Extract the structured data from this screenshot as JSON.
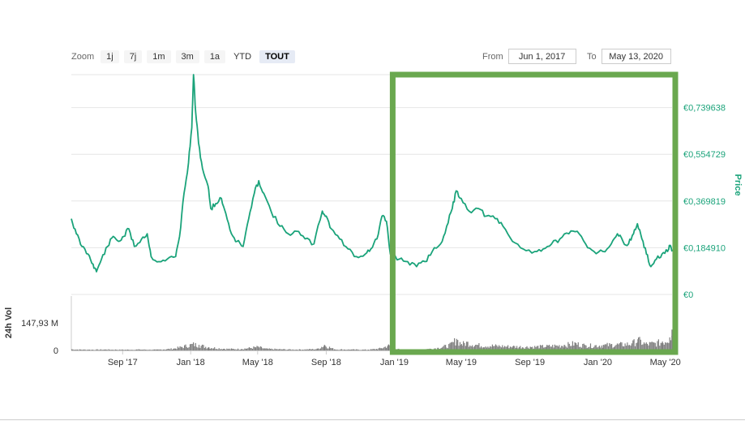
{
  "zoom": {
    "label": "Zoom",
    "buttons": [
      {
        "label": "1j",
        "active": false,
        "plain": false
      },
      {
        "label": "7j",
        "active": false,
        "plain": false
      },
      {
        "label": "1m",
        "active": false,
        "plain": false
      },
      {
        "label": "3m",
        "active": false,
        "plain": false
      },
      {
        "label": "1a",
        "active": false,
        "plain": false
      },
      {
        "label": "YTD",
        "active": false,
        "plain": true
      },
      {
        "label": "TOUT",
        "active": true,
        "plain": false
      }
    ]
  },
  "range": {
    "from_label": "From",
    "from_value": "Jun 1, 2017",
    "to_label": "To",
    "to_value": "May 13, 2020"
  },
  "chart_data": {
    "type": "line",
    "title": "",
    "ylabel": "Price",
    "vol_label": "24h Vol",
    "y_ticks": [
      0,
      0.18491,
      0.369819,
      0.554729,
      0.739638
    ],
    "y_tick_labels": [
      "€0",
      "€0,184910",
      "€0,369819",
      "€0,554729",
      "€0,739638"
    ],
    "ylim": [
      0,
      0.87
    ],
    "vol_ticks": [
      "0",
      "147,93 M"
    ],
    "vol_ylim": [
      0,
      147.93
    ],
    "x_tick_labels": [
      "Sep '17",
      "Jan '18",
      "May '18",
      "Sep '18",
      "Jan '19",
      "May '19",
      "Sep '19",
      "Jan '20",
      "May '20"
    ],
    "x_tick_dates": [
      "2017-09-01",
      "2018-01-01",
      "2018-05-01",
      "2018-09-01",
      "2019-01-01",
      "2019-05-01",
      "2019-09-01",
      "2020-01-01",
      "2020-05-01"
    ],
    "xlim": [
      "2017-06-01",
      "2020-05-13"
    ],
    "grid": true,
    "line_color": "#1aa37a",
    "volume_color": "#7f7f7f",
    "highlight": {
      "from": "2019-01-01",
      "to": "2020-05-13",
      "color": "#6aa84f"
    },
    "series": [
      {
        "values": [
          [
            "2017-06-01",
            0.3
          ],
          [
            "2017-06-10",
            0.24
          ],
          [
            "2017-06-20",
            0.19
          ],
          [
            "2017-07-01",
            0.16
          ],
          [
            "2017-07-10",
            0.12
          ],
          [
            "2017-07-16",
            0.09
          ],
          [
            "2017-07-25",
            0.14
          ],
          [
            "2017-08-05",
            0.19
          ],
          [
            "2017-08-15",
            0.23
          ],
          [
            "2017-08-25",
            0.21
          ],
          [
            "2017-09-03",
            0.23
          ],
          [
            "2017-09-12",
            0.26
          ],
          [
            "2017-09-22",
            0.19
          ],
          [
            "2017-10-05",
            0.22
          ],
          [
            "2017-10-15",
            0.24
          ],
          [
            "2017-10-22",
            0.15
          ],
          [
            "2017-11-05",
            0.13
          ],
          [
            "2017-11-20",
            0.14
          ],
          [
            "2017-12-05",
            0.15
          ],
          [
            "2017-12-12",
            0.23
          ],
          [
            "2017-12-20",
            0.4
          ],
          [
            "2017-12-28",
            0.52
          ],
          [
            "2018-01-03",
            0.66
          ],
          [
            "2018-01-06",
            0.87
          ],
          [
            "2018-01-10",
            0.72
          ],
          [
            "2018-01-15",
            0.6
          ],
          [
            "2018-01-22",
            0.5
          ],
          [
            "2018-02-01",
            0.43
          ],
          [
            "2018-02-06",
            0.34
          ],
          [
            "2018-02-15",
            0.36
          ],
          [
            "2018-02-25",
            0.38
          ],
          [
            "2018-03-05",
            0.32
          ],
          [
            "2018-03-15",
            0.24
          ],
          [
            "2018-03-25",
            0.21
          ],
          [
            "2018-04-05",
            0.19
          ],
          [
            "2018-04-15",
            0.3
          ],
          [
            "2018-04-25",
            0.4
          ],
          [
            "2018-05-03",
            0.45
          ],
          [
            "2018-05-12",
            0.4
          ],
          [
            "2018-05-25",
            0.33
          ],
          [
            "2018-06-10",
            0.27
          ],
          [
            "2018-06-25",
            0.24
          ],
          [
            "2018-07-10",
            0.25
          ],
          [
            "2018-07-25",
            0.22
          ],
          [
            "2018-08-10",
            0.2
          ],
          [
            "2018-08-25",
            0.33
          ],
          [
            "2018-09-01",
            0.31
          ],
          [
            "2018-09-10",
            0.26
          ],
          [
            "2018-09-25",
            0.22
          ],
          [
            "2018-10-10",
            0.18
          ],
          [
            "2018-10-25",
            0.15
          ],
          [
            "2018-11-10",
            0.16
          ],
          [
            "2018-11-20",
            0.18
          ],
          [
            "2018-12-01",
            0.22
          ],
          [
            "2018-12-10",
            0.31
          ],
          [
            "2018-12-18",
            0.29
          ],
          [
            "2018-12-25",
            0.16
          ],
          [
            "2019-01-10",
            0.14
          ],
          [
            "2019-01-25",
            0.13
          ],
          [
            "2019-02-10",
            0.11
          ],
          [
            "2019-02-25",
            0.13
          ],
          [
            "2019-03-10",
            0.17
          ],
          [
            "2019-03-25",
            0.2
          ],
          [
            "2019-04-05",
            0.27
          ],
          [
            "2019-04-15",
            0.34
          ],
          [
            "2019-04-22",
            0.41
          ],
          [
            "2019-05-01",
            0.38
          ],
          [
            "2019-05-15",
            0.33
          ],
          [
            "2019-06-01",
            0.34
          ],
          [
            "2019-06-15",
            0.31
          ],
          [
            "2019-07-01",
            0.3
          ],
          [
            "2019-07-15",
            0.27
          ],
          [
            "2019-08-01",
            0.21
          ],
          [
            "2019-08-20",
            0.18
          ],
          [
            "2019-09-10",
            0.17
          ],
          [
            "2019-09-25",
            0.18
          ],
          [
            "2019-10-10",
            0.2
          ],
          [
            "2019-10-25",
            0.22
          ],
          [
            "2019-11-10",
            0.24
          ],
          [
            "2019-11-25",
            0.25
          ],
          [
            "2019-12-10",
            0.2
          ],
          [
            "2019-12-25",
            0.17
          ],
          [
            "2020-01-10",
            0.17
          ],
          [
            "2020-01-25",
            0.2
          ],
          [
            "2020-02-05",
            0.24
          ],
          [
            "2020-02-15",
            0.21
          ],
          [
            "2020-02-25",
            0.2
          ],
          [
            "2020-03-05",
            0.24
          ],
          [
            "2020-03-12",
            0.28
          ],
          [
            "2020-03-20",
            0.22
          ],
          [
            "2020-03-28",
            0.16
          ],
          [
            "2020-04-05",
            0.11
          ],
          [
            "2020-04-15",
            0.14
          ],
          [
            "2020-04-25",
            0.16
          ],
          [
            "2020-05-05",
            0.17
          ],
          [
            "2020-05-09",
            0.19
          ],
          [
            "2020-05-13",
            0.17
          ]
        ]
      }
    ],
    "volume": [
      [
        "2017-06-01",
        6
      ],
      [
        "2017-07-01",
        4
      ],
      [
        "2017-08-01",
        5
      ],
      [
        "2017-09-01",
        4
      ],
      [
        "2017-10-01",
        5
      ],
      [
        "2017-11-01",
        4
      ],
      [
        "2017-12-01",
        10
      ],
      [
        "2017-12-20",
        24
      ],
      [
        "2018-01-05",
        35
      ],
      [
        "2018-01-15",
        30
      ],
      [
        "2018-02-01",
        18
      ],
      [
        "2018-03-01",
        9
      ],
      [
        "2018-04-01",
        8
      ],
      [
        "2018-05-01",
        20
      ],
      [
        "2018-05-15",
        9
      ],
      [
        "2018-06-15",
        6
      ],
      [
        "2018-07-15",
        5
      ],
      [
        "2018-08-15",
        8
      ],
      [
        "2018-08-28",
        30
      ],
      [
        "2018-09-15",
        6
      ],
      [
        "2018-10-15",
        5
      ],
      [
        "2018-11-15",
        4
      ],
      [
        "2018-12-08",
        12
      ],
      [
        "2018-12-20",
        28
      ],
      [
        "2019-01-10",
        5
      ],
      [
        "2019-02-10",
        4
      ],
      [
        "2019-03-01",
        8
      ],
      [
        "2019-03-20",
        14
      ],
      [
        "2019-04-10",
        30
      ],
      [
        "2019-04-22",
        62
      ],
      [
        "2019-05-01",
        35
      ],
      [
        "2019-05-10",
        44
      ],
      [
        "2019-06-01",
        30
      ],
      [
        "2019-07-01",
        26
      ],
      [
        "2019-08-01",
        22
      ],
      [
        "2019-09-01",
        20
      ],
      [
        "2019-10-01",
        24
      ],
      [
        "2019-11-01",
        30
      ],
      [
        "2019-11-20",
        40
      ],
      [
        "2019-12-10",
        27
      ],
      [
        "2020-01-10",
        30
      ],
      [
        "2020-02-10",
        34
      ],
      [
        "2020-03-01",
        38
      ],
      [
        "2020-03-12",
        60
      ],
      [
        "2020-03-25",
        36
      ],
      [
        "2020-04-10",
        40
      ],
      [
        "2020-04-25",
        48
      ],
      [
        "2020-05-08",
        70
      ],
      [
        "2020-05-12",
        112
      ],
      [
        "2020-05-13",
        60
      ]
    ]
  }
}
